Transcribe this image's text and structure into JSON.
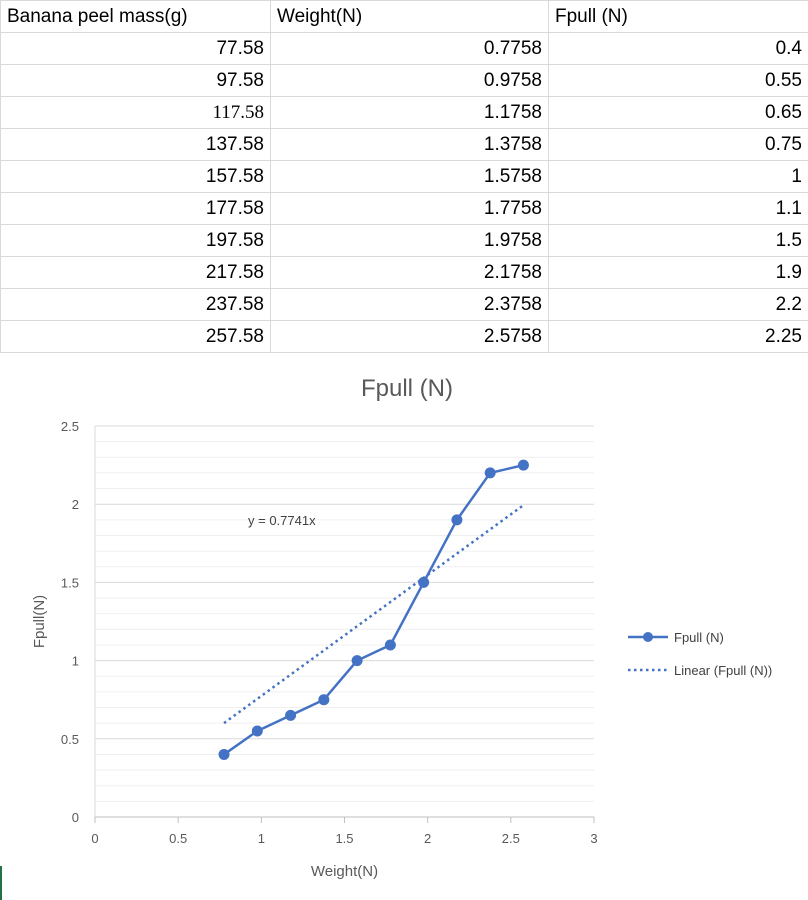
{
  "table": {
    "headers": [
      "Banana peel mass(g)",
      "Weight(N)",
      "Fpull (N)"
    ],
    "rows": [
      [
        "77.58",
        "0.7758",
        "0.4"
      ],
      [
        "97.58",
        "0.9758",
        "0.55"
      ],
      [
        "117.58",
        "1.1758",
        "0.65"
      ],
      [
        "137.58",
        "1.3758",
        "0.75"
      ],
      [
        "157.58",
        "1.5758",
        "1"
      ],
      [
        "177.58",
        "1.7758",
        "1.1"
      ],
      [
        "197.58",
        "1.9758",
        "1.5"
      ],
      [
        "217.58",
        "2.1758",
        "1.9"
      ],
      [
        "237.58",
        "2.3758",
        "2.2"
      ],
      [
        "257.58",
        "2.5758",
        "2.25"
      ]
    ]
  },
  "chart_data": {
    "type": "scatter",
    "title": "Fpull (N)",
    "xlabel": "Weight(N)",
    "ylabel": "Fpull(N)",
    "xlim": [
      0,
      3
    ],
    "ylim": [
      0,
      2.5
    ],
    "x_ticks": [
      "0",
      "0.5",
      "1",
      "1.5",
      "2",
      "2.5",
      "3"
    ],
    "y_ticks": [
      "0",
      "0.5",
      "1",
      "1.5",
      "2",
      "2.5"
    ],
    "series": [
      {
        "name": "Fpull (N)",
        "color": "#4472c4",
        "x": [
          0.7758,
          0.9758,
          1.1758,
          1.3758,
          1.5758,
          1.7758,
          1.9758,
          2.1758,
          2.3758,
          2.5758
        ],
        "y": [
          0.4,
          0.55,
          0.65,
          0.75,
          1,
          1.1,
          1.5,
          1.9,
          2.2,
          2.25
        ]
      }
    ],
    "trendline": {
      "name": "Linear (Fpull (N))",
      "equation": "y = 0.7741x",
      "slope": 0.7741,
      "style": "dotted",
      "color": "#4472c4"
    },
    "grid": true,
    "legend": "right"
  }
}
